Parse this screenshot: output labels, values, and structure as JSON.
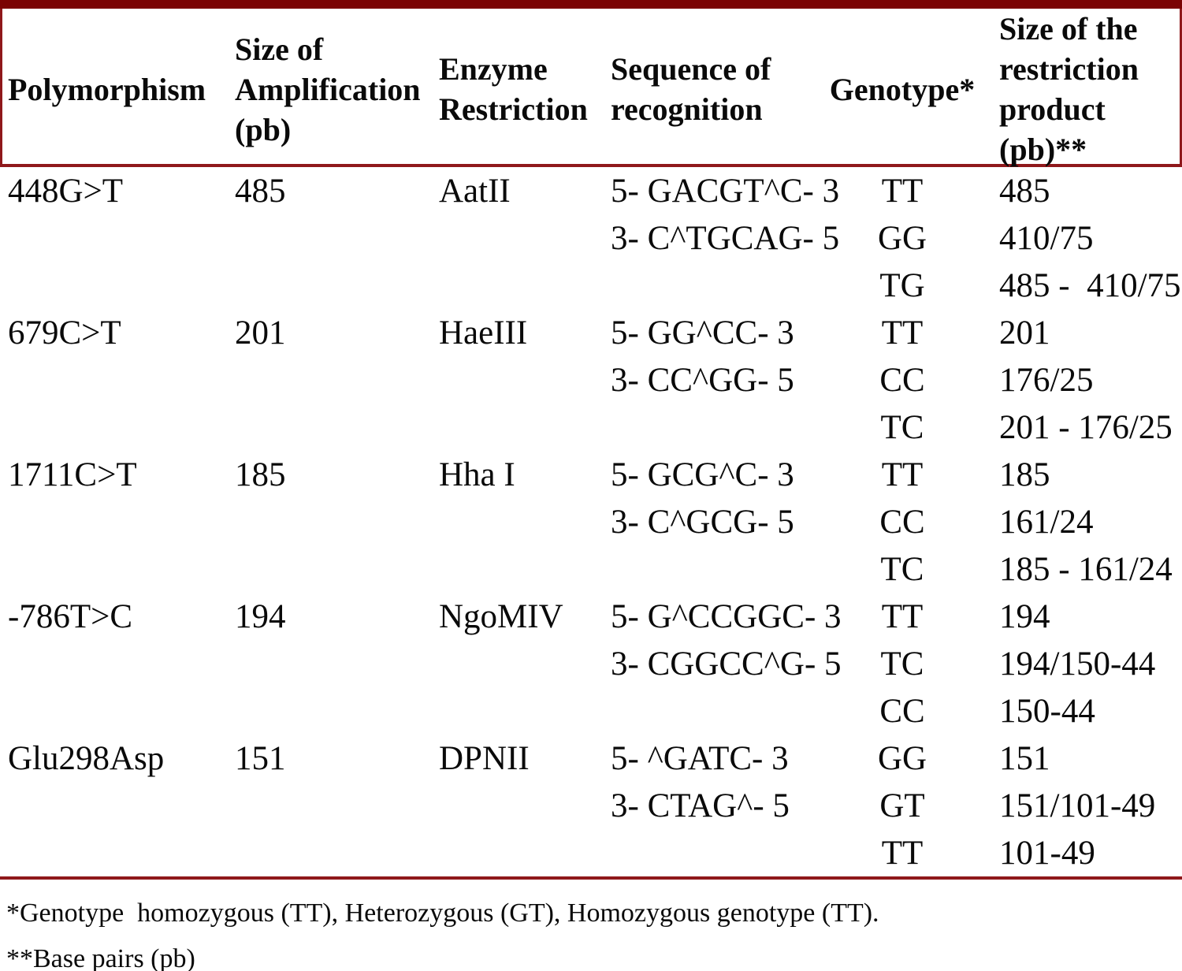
{
  "page": {
    "background": "#ffffff",
    "accent_bar_color": "#7b0304",
    "rule_color": "#8f181b",
    "text_color": "#0a0a0a"
  },
  "table": {
    "headers": {
      "polymorphism": "Polymorphism",
      "amplification": "Size of Amplification (pb)",
      "enzyme": "Enzyme Restriction",
      "sequence": "Sequence of recognition",
      "genotype": "Genotype*",
      "product": "Size of the restriction product (pb)**"
    },
    "groups": [
      {
        "polymorphism": "448G>T",
        "amplification_size": "485",
        "enzyme": "AatII",
        "sequence": [
          "5- GACGT^C- 3",
          "3- C^TGCAG- 5"
        ],
        "rows": [
          {
            "genotype": "TT",
            "product": "485"
          },
          {
            "genotype": "GG",
            "product": "410/75"
          },
          {
            "genotype": "TG",
            "product": "485 -  410/75"
          }
        ]
      },
      {
        "polymorphism": "679C>T",
        "amplification_size": "201",
        "enzyme": "HaeIII",
        "sequence": [
          "5- GG^CC- 3",
          "3- CC^GG- 5"
        ],
        "rows": [
          {
            "genotype": "TT",
            "product": "201"
          },
          {
            "genotype": "CC",
            "product": "176/25"
          },
          {
            "genotype": "TC",
            "product": "201 - 176/25"
          }
        ]
      },
      {
        "polymorphism": "1711C>T",
        "amplification_size": "185",
        "enzyme": "Hha I",
        "sequence": [
          "5- GCG^C- 3",
          "3- C^GCG- 5"
        ],
        "rows": [
          {
            "genotype": "TT",
            "product": "185"
          },
          {
            "genotype": "CC",
            "product": "161/24"
          },
          {
            "genotype": "TC",
            "product": "185 - 161/24"
          }
        ]
      },
      {
        "polymorphism": "-786T>C",
        "amplification_size": "194",
        "enzyme": "NgoMIV",
        "sequence": [
          "5- G^CCGGC- 3",
          "3- CGGCC^G- 5"
        ],
        "rows": [
          {
            "genotype": "TT",
            "product": "194"
          },
          {
            "genotype": "TC",
            "product": "194/150-44"
          },
          {
            "genotype": "CC",
            "product": "150-44"
          }
        ]
      },
      {
        "polymorphism": "Glu298Asp",
        "amplification_size": "151",
        "enzyme": "DPNII",
        "sequence": [
          "5- ^GATC- 3",
          "3- CTAG^- 5"
        ],
        "rows": [
          {
            "genotype": "GG",
            "product": "151"
          },
          {
            "genotype": "GT",
            "product": "151/101-49"
          },
          {
            "genotype": "TT",
            "product": "101-49"
          }
        ]
      }
    ]
  },
  "footnotes": {
    "genotype_note": "*Genotype  homozygous (TT), Heterozygous (GT), Homozygous genotype (TT).",
    "base_pairs_note": "**Base pairs (pb)"
  }
}
